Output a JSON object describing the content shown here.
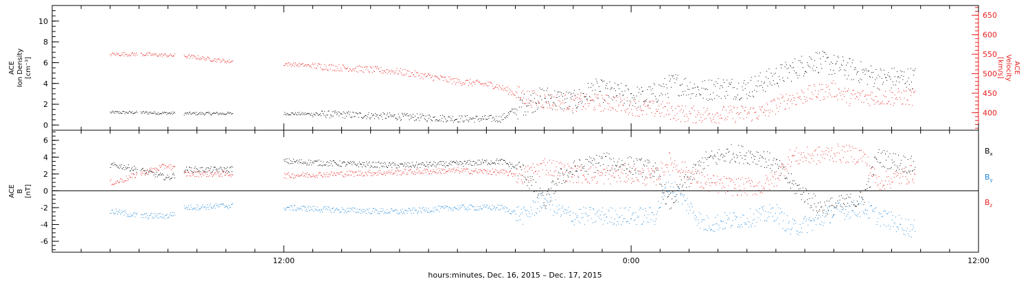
{
  "chart_data": [
    {
      "type": "scatter",
      "panel": "top",
      "ylabel_left_lines": [
        "ACE",
        "Ion Density"
      ],
      "ylabel_left_unit": "[cm⁻³]",
      "ylabel_right_lines": [
        "ACE",
        "Velocity"
      ],
      "ylabel_right_unit": "[km/s]",
      "ylim_left": [
        -0.5,
        11.5
      ],
      "ylim_right": [
        355,
        675
      ],
      "yticks_left": [
        "0",
        "2",
        "4",
        "6",
        "8",
        "10"
      ],
      "yticks_right": [
        "400",
        "450",
        "500",
        "550",
        "600",
        "650"
      ],
      "colors": {
        "density": "#000000",
        "velocity": "#e81c1c"
      },
      "series": [
        {
          "key": "density",
          "color": "#000000",
          "axis": "left",
          "x": [
            6.2,
            7.0,
            8.6,
            10.0,
            12.0,
            14.0,
            16.0,
            18.0,
            19.5,
            20.3,
            21.0,
            22.0,
            22.7,
            23.5,
            24.5,
            25.5,
            26.5,
            27.0,
            28.0,
            29.3,
            30.3,
            31.5,
            32.6,
            33.7
          ],
          "y": [
            1.2,
            1.2,
            1.1,
            1.1,
            1.1,
            1.0,
            0.8,
            0.6,
            0.6,
            2.0,
            2.7,
            2.2,
            3.4,
            3.0,
            2.6,
            4.0,
            3.3,
            3.6,
            3.5,
            5.0,
            6.2,
            5.4,
            4.5,
            4.5
          ]
        },
        {
          "key": "velocity",
          "color": "#e81c1c",
          "axis": "right",
          "x": [
            6.2,
            7.0,
            8.6,
            10.0,
            12.0,
            14.0,
            16.0,
            18.0,
            19.3,
            20.3,
            21.0,
            22.0,
            22.5,
            23.4,
            24.4,
            25.0,
            26.0,
            27.3,
            28.5,
            29.3,
            30.0,
            31.0,
            31.5,
            32.5,
            33.7
          ],
          "y": [
            550,
            550,
            545,
            532,
            525,
            515,
            505,
            480,
            470,
            440,
            430,
            425,
            425,
            425,
            410,
            408,
            395,
            395,
            400,
            430,
            445,
            460,
            440,
            440,
            440
          ]
        }
      ]
    },
    {
      "type": "scatter",
      "panel": "bottom",
      "ylabel_lines": [
        "ACE",
        "B"
      ],
      "ylabel_unit": "[nT]",
      "ylim": [
        -7.3,
        7.2
      ],
      "yticks": [
        "-6",
        "-4",
        "-2",
        "0",
        "2",
        "4",
        "6"
      ],
      "colors": {
        "bx": "#000000",
        "by": "#1c86d8",
        "bz": "#e81c1c"
      },
      "legend": [
        {
          "key": "bx",
          "base": "B",
          "sub": "x",
          "color": "#000000"
        },
        {
          "key": "by",
          "base": "B",
          "sub": "y",
          "color": "#1c86d8"
        },
        {
          "key": "bz",
          "base": "B",
          "sub": "z",
          "color": "#e81c1c"
        }
      ],
      "series": [
        {
          "key": "bx",
          "color": "#000000",
          "x": [
            6.2,
            7.0,
            8.0,
            8.6,
            10.0,
            12.0,
            14.0,
            16.0,
            18.0,
            19.5,
            20.2,
            21.0,
            21.5,
            22.0,
            23.0,
            24.0,
            24.8,
            25.3,
            26.5,
            27.5,
            28.5,
            29.0,
            29.5,
            30.5,
            31.0,
            32.0,
            32.5,
            33.7
          ],
          "y": [
            3.0,
            2.5,
            1.5,
            2.5,
            2.5,
            3.5,
            3.2,
            3.0,
            3.2,
            3.5,
            2.5,
            -1.5,
            1.5,
            2.5,
            3.5,
            3.0,
            2.5,
            -1.5,
            3.5,
            4.5,
            4.0,
            3.0,
            1.0,
            -2.0,
            -1.8,
            -1.0,
            4.0,
            3.0
          ]
        },
        {
          "key": "by",
          "color": "#1c86d8",
          "x": [
            6.2,
            7.0,
            8.0,
            8.6,
            10.0,
            12.0,
            14.0,
            16.0,
            18.0,
            19.5,
            20.3,
            21.0,
            21.5,
            22.0,
            23.0,
            24.0,
            24.8,
            25.3,
            26.5,
            27.5,
            28.5,
            29.0,
            29.5,
            30.5,
            31.0,
            32.0,
            32.5,
            33.7
          ],
          "y": [
            -2.5,
            -3.0,
            -3.0,
            -2.0,
            -1.8,
            -2.0,
            -2.3,
            -2.5,
            -2.0,
            -2.0,
            -3.0,
            -1.0,
            -2.5,
            -3.0,
            -3.0,
            -3.0,
            -3.0,
            1.0,
            -4.0,
            -3.5,
            -3.0,
            -2.5,
            -4.5,
            -3.5,
            -2.5,
            -2.0,
            -3.0,
            -4.5
          ]
        },
        {
          "key": "bz",
          "color": "#e81c1c",
          "x": [
            6.2,
            7.0,
            8.0,
            8.6,
            10.0,
            12.0,
            14.0,
            16.0,
            18.0,
            19.5,
            20.3,
            21.0,
            21.5,
            22.0,
            23.0,
            24.0,
            24.8,
            25.3,
            26.5,
            27.5,
            28.5,
            29.0,
            29.5,
            30.5,
            31.0,
            32.0,
            32.5,
            33.7
          ],
          "y": [
            1.0,
            2.0,
            3.0,
            2.0,
            2.0,
            1.8,
            2.0,
            2.2,
            2.4,
            2.2,
            1.8,
            3.0,
            2.5,
            2.0,
            1.8,
            2.0,
            1.5,
            3.5,
            1.0,
            0.5,
            0.5,
            1.5,
            4.0,
            4.2,
            4.5,
            4.2,
            1.0,
            2.0
          ]
        }
      ]
    }
  ],
  "xaxis": {
    "range": [
      4.0,
      36.0
    ],
    "ticks": [
      {
        "x": 12,
        "label": "12:00"
      },
      {
        "x": 24,
        "label": "0:00"
      },
      {
        "x": 36,
        "label": "12:00"
      }
    ],
    "xlabel": "hours:minutes, Dec. 16, 2015 – Dec. 17, 2015"
  }
}
